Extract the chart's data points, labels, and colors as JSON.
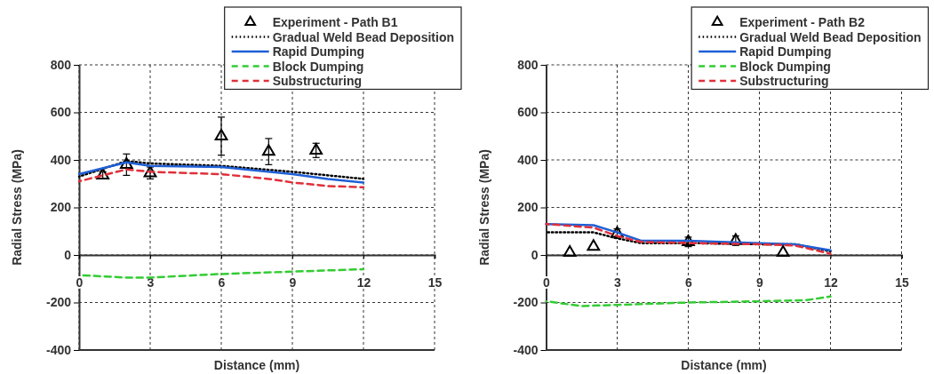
{
  "chart_data": [
    {
      "type": "line",
      "xlabel": "Distance (mm)",
      "ylabel": "Radial Stress (MPa)",
      "xlim": [
        0,
        15
      ],
      "xticks": [
        0,
        3,
        6,
        9,
        12,
        15
      ],
      "ylim": [
        -400,
        800
      ],
      "yticks": [
        -400,
        -200,
        0,
        200,
        400,
        600,
        800
      ],
      "grid": true,
      "legend": "top",
      "series": [
        {
          "name": "Experiment - Path B1",
          "type": "scatter",
          "marker": "triangle",
          "color": "#000000",
          "x": [
            1,
            2,
            3,
            6,
            8,
            10
          ],
          "values": [
            335,
            380,
            345,
            500,
            435,
            440
          ],
          "errors": [
            15,
            45,
            25,
            80,
            55,
            30
          ]
        },
        {
          "name": "Gradual Weld Bead Deposition",
          "line_style": "dotted",
          "color": "#000000",
          "x": [
            0,
            2,
            3,
            6,
            9,
            10.5,
            12
          ],
          "values": [
            330,
            395,
            385,
            375,
            350,
            335,
            320
          ]
        },
        {
          "name": "Rapid Dumping",
          "line_style": "solid",
          "color": "#1f5fd6",
          "x": [
            0,
            2,
            3,
            6,
            9,
            10.5,
            12
          ],
          "values": [
            340,
            390,
            375,
            370,
            340,
            320,
            305
          ]
        },
        {
          "name": "Block Dumping",
          "line_style": "dashed",
          "color": "#33cc33",
          "x": [
            0,
            2,
            3,
            6,
            9,
            12
          ],
          "values": [
            -85,
            -95,
            -95,
            -80,
            -70,
            -60
          ]
        },
        {
          "name": "Substructuring",
          "line_style": "dashed",
          "color": "#e0303a",
          "x": [
            0,
            2,
            3,
            6,
            8,
            9,
            10.5,
            12
          ],
          "values": [
            310,
            360,
            350,
            340,
            320,
            305,
            290,
            285
          ]
        }
      ]
    },
    {
      "type": "line",
      "xlabel": "Distance (mm)",
      "ylabel": "Radial Stress (MPa)",
      "xlim": [
        0,
        15
      ],
      "xticks": [
        0,
        3,
        6,
        9,
        12,
        15
      ],
      "ylim": [
        -400,
        800
      ],
      "yticks": [
        -400,
        -200,
        0,
        200,
        400,
        600,
        800
      ],
      "grid": true,
      "legend": "top",
      "series": [
        {
          "name": "Experiment - Path B2",
          "type": "scatter",
          "marker": "triangle",
          "color": "#000000",
          "x": [
            1,
            2,
            3,
            6,
            8,
            10
          ],
          "values": [
            10,
            35,
            90,
            55,
            60,
            10
          ],
          "errors": [
            null,
            null,
            20,
            20,
            20,
            null
          ]
        },
        {
          "name": "Gradual Weld Bead Deposition",
          "line_style": "dotted",
          "color": "#000000",
          "x": [
            0,
            2,
            3,
            4,
            6,
            9,
            10.5,
            12
          ],
          "values": [
            95,
            95,
            70,
            50,
            50,
            45,
            45,
            15
          ]
        },
        {
          "name": "Rapid Dumping",
          "line_style": "solid",
          "color": "#1f5fd6",
          "x": [
            0,
            2,
            3,
            4,
            6,
            9,
            10.5,
            12
          ],
          "values": [
            130,
            125,
            95,
            60,
            60,
            50,
            45,
            20
          ]
        },
        {
          "name": "Block Dumping",
          "line_style": "dashed",
          "color": "#33cc33",
          "x": [
            0,
            1.5,
            3,
            6,
            9,
            11,
            12
          ],
          "values": [
            -195,
            -215,
            -210,
            -200,
            -195,
            -190,
            -175
          ]
        },
        {
          "name": "Substructuring",
          "line_style": "dashed",
          "color": "#e0303a",
          "x": [
            0,
            2,
            3,
            4,
            6,
            9,
            10.5,
            12
          ],
          "values": [
            130,
            115,
            80,
            55,
            50,
            45,
            40,
            5
          ]
        }
      ]
    }
  ]
}
